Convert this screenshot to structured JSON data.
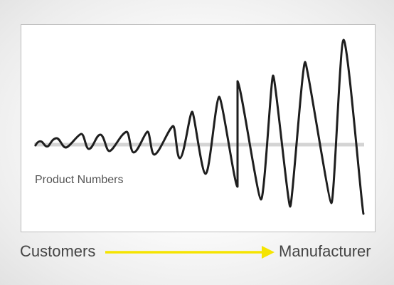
{
  "panel_label": "Product Numbers",
  "left_label": "Customers",
  "right_label": "Manufacturer",
  "colors": {
    "baseline": "#d4d4d4",
    "wave": "#1e1e1e",
    "arrow": "#f5e400",
    "panel_border": "#bdbdbd"
  }
}
